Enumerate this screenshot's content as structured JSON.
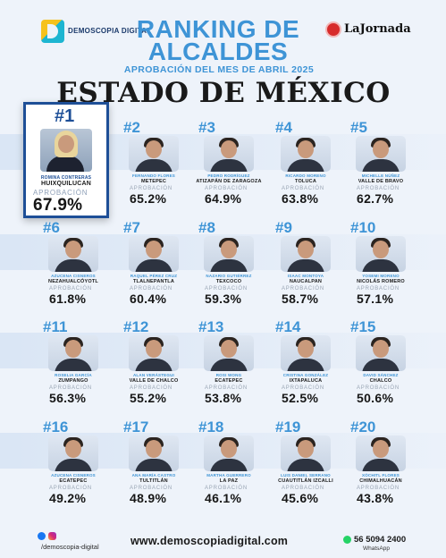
{
  "header": {
    "logo_name": "DEMOSCOPIA DIGITAL",
    "title_line1": "RANKING DE",
    "title_line2": "ALCALDES",
    "subtitle": "APROBACIÓN DEL MES DE ABRIL 2025",
    "state": "ESTADO DE MÉXICO",
    "partner_logo": "LaJornada"
  },
  "approval_label": "APROBACIÓN",
  "ranking": [
    {
      "rank": "#1",
      "name": "ROMINA CONTRERAS",
      "municipality": "HUIXQUILUCAN",
      "approval": "67.9%"
    },
    {
      "rank": "#2",
      "name": "FERNANDO FLORES",
      "municipality": "METEPEC",
      "approval": "65.2%"
    },
    {
      "rank": "#3",
      "name": "PEDRO RODRÍGUEZ",
      "municipality": "ATIZAPÁN DE ZARAGOZA",
      "approval": "64.9%"
    },
    {
      "rank": "#4",
      "name": "RICARDO MORENO",
      "municipality": "TOLUCA",
      "approval": "63.8%"
    },
    {
      "rank": "#5",
      "name": "MICHELLE NÚÑEZ",
      "municipality": "VALLE DE BRAVO",
      "approval": "62.7%"
    },
    {
      "rank": "#6",
      "name": "AZUCENA CISNEROS",
      "municipality": "NEZAHUALCÓYOTL",
      "approval": "61.8%"
    },
    {
      "rank": "#7",
      "name": "RAQUEL PÉREZ CRUZ",
      "municipality": "TLALNEPANTLA",
      "approval": "60.4%"
    },
    {
      "rank": "#8",
      "name": "NAZARIO GUTIÉRREZ",
      "municipality": "TEXCOCO",
      "approval": "59.3%"
    },
    {
      "rank": "#9",
      "name": "ISAAC MONTOYA",
      "municipality": "NAUCALPAN",
      "approval": "58.7%"
    },
    {
      "rank": "#10",
      "name": "YOSEMI MORENO",
      "municipality": "NICOLÁS ROMERO",
      "approval": "57.1%"
    },
    {
      "rank": "#11",
      "name": "ROSELIA GARCÍA",
      "municipality": "ZUMPANGO",
      "approval": "56.3%"
    },
    {
      "rank": "#12",
      "name": "ALAN VERÁSTEGUI",
      "municipality": "VALLE DE CHALCO",
      "approval": "55.2%"
    },
    {
      "rank": "#13",
      "name": "ROSI WONG",
      "municipality": "ECATEPEC",
      "approval": "53.8%"
    },
    {
      "rank": "#14",
      "name": "CRISTINA GONZÁLEZ",
      "municipality": "IXTAPALUCA",
      "approval": "52.5%"
    },
    {
      "rank": "#15",
      "name": "DAVID SÁNCHEZ",
      "municipality": "CHALCO",
      "approval": "50.6%"
    },
    {
      "rank": "#16",
      "name": "AZUCENA CISNEROS",
      "municipality": "ECATEPEC",
      "approval": "49.2%"
    },
    {
      "rank": "#17",
      "name": "ANA MARÍA CASTRO",
      "municipality": "TULTITLÁN",
      "approval": "48.9%"
    },
    {
      "rank": "#18",
      "name": "MARTHA GUERRERO",
      "municipality": "LA PAZ",
      "approval": "46.1%"
    },
    {
      "rank": "#19",
      "name": "LUIS DANIEL SERRANO",
      "municipality": "CUAUTITLÁN IZCALLI",
      "approval": "45.6%"
    },
    {
      "rank": "#20",
      "name": "XÓCHITL FLORES",
      "municipality": "CHIMALHUACÁN",
      "approval": "43.8%"
    }
  ],
  "footer": {
    "social_handle": "/demoscopia-digital",
    "website": "www.demoscopiadigital.com",
    "whatsapp_number": "56 5094 2400",
    "whatsapp_label": "WhatsApp"
  },
  "colors": {
    "accent": "#3e94d6",
    "highlight_border": "#1e4f97",
    "background": "#eef3fa"
  }
}
